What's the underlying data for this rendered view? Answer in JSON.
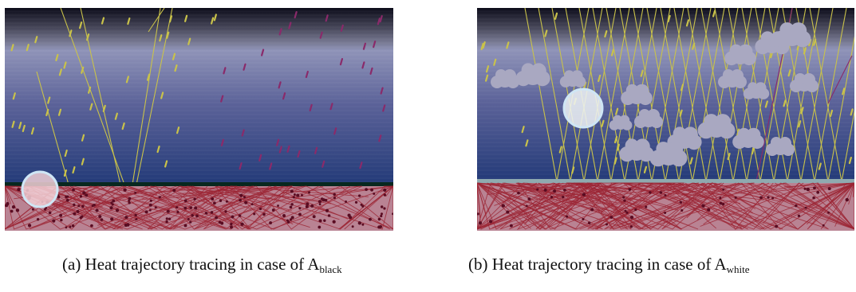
{
  "panels": [
    {
      "id": "a",
      "caption_prefix": "(a) Heat trajectory tracing in case of A",
      "caption_subscript": "black"
    },
    {
      "id": "b",
      "caption_prefix": "(b) Heat trajectory tracing in case of A",
      "caption_subscript": "white"
    }
  ],
  "colors": {
    "sky_top": "#0c0c1a",
    "sky_mid": "#8f93b8",
    "sky_low": "#233a78",
    "ground": "#b98393",
    "ground_line_black": "#08281f",
    "ground_line_white": "#8faab0",
    "sunlight_ray": "#c9c24a",
    "infrared_ray": "#8a2a6a",
    "heat_ray": "#9c2535",
    "cloud": "#a9a8c1"
  }
}
